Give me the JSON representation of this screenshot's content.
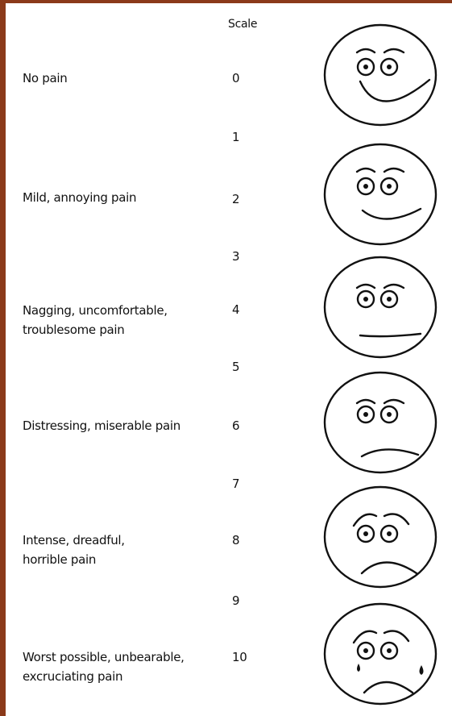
{
  "header": "Scale",
  "scale": [
    0,
    1,
    2,
    3,
    4,
    5,
    6,
    7,
    8,
    9,
    10
  ],
  "descriptors": [
    {
      "lines": [
        "No pain"
      ]
    },
    {
      "lines": [
        "Mild, annoying pain"
      ]
    },
    {
      "lines": [
        "Nagging, uncomfortable,",
        "troublesome pain"
      ]
    },
    {
      "lines": [
        "Distressing, miserable pain"
      ]
    },
    {
      "lines": [
        "Intense, dreadful,",
        "horrible pain"
      ]
    },
    {
      "lines": [
        "Worst possible, unbearable,",
        "excruciating pain"
      ]
    }
  ]
}
